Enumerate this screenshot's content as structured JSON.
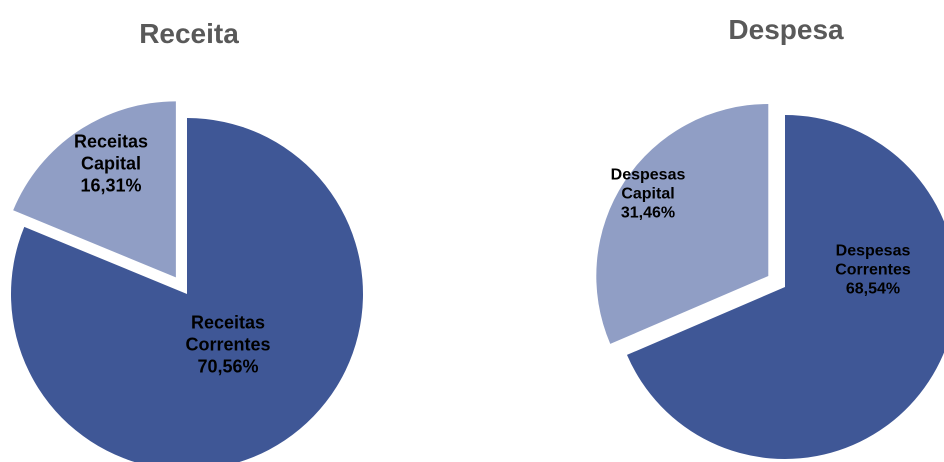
{
  "chart_data": [
    {
      "type": "pie",
      "title": "Receita",
      "slices": [
        {
          "label": [
            "Receitas",
            "Correntes",
            "70,56%"
          ],
          "value": 70.56,
          "color": "#3f5796",
          "exploded": false
        },
        {
          "label": [
            "Receitas",
            "Capital",
            "16,31%"
          ],
          "value": 16.31,
          "color": "#909ec5",
          "exploded": true
        }
      ]
    },
    {
      "type": "pie",
      "title": "Despesa",
      "slices": [
        {
          "label": [
            "Despesas",
            "Correntes",
            "68,54%"
          ],
          "value": 68.54,
          "color": "#3f5796",
          "exploded": false
        },
        {
          "label": [
            "Despesas",
            "Capital",
            "31,46%"
          ],
          "value": 31.46,
          "color": "#909ec5",
          "exploded": true
        }
      ]
    }
  ]
}
